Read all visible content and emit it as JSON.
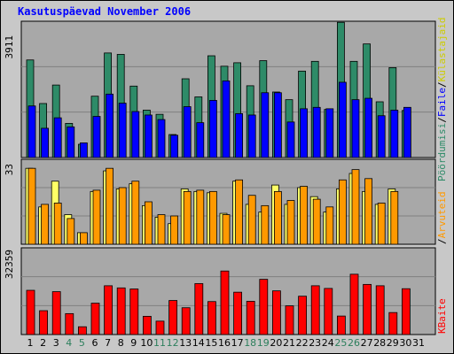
{
  "title": "Kasutuspäevad November 2006",
  "colors": {
    "frame_bg": "#C8C8C8",
    "plot_bg": "#A8A8A8",
    "title": "#0000FF",
    "weekday_day": "#000000",
    "weekend_day": "#2C7F5C",
    "visits_line": "#1E7A5A",
    "visits_fill": "#2E8B68",
    "pages_fill": "#0000FF",
    "hits_fill": "#FF9900",
    "files_fill": "#FFFF66",
    "kbytes_fill": "#FF0000",
    "legend_visits": "#2E8B68",
    "legend_pages": "#0000FF",
    "legend_hits": "#FF9900",
    "legend_files": "#CCCC00",
    "legend_kbytes": "#FF0000",
    "legend_sep": "#000000"
  },
  "chart_data": [
    {
      "type": "bar",
      "panel": "visits_pages",
      "y_label": "3911",
      "ylim": [
        0,
        3911
      ],
      "days": [
        "1",
        "2",
        "3",
        "4",
        "5",
        "6",
        "7",
        "8",
        "9",
        "10",
        "11",
        "12",
        "13",
        "14",
        "15",
        "16",
        "17",
        "18",
        "19",
        "20",
        "21",
        "22",
        "23",
        "24",
        "25",
        "26",
        "27",
        "28",
        "29",
        "30",
        "31"
      ],
      "weekend": [
        4,
        5,
        11,
        12,
        18,
        19,
        25,
        26
      ],
      "series": [
        {
          "name": "Pöördumisi",
          "values": [
            2800,
            1550,
            2080,
            980,
            380,
            1760,
            3000,
            2960,
            2050,
            1360,
            1240,
            660,
            2260,
            1740,
            2920,
            2620,
            2720,
            2060,
            2780,
            1880,
            1660,
            2480,
            2760,
            1380,
            3880,
            2760,
            3260,
            1600,
            2580,
            1350,
            null
          ]
        },
        {
          "name": "Faile",
          "values": [
            1480,
            840,
            1140,
            880,
            420,
            1180,
            1820,
            1560,
            1320,
            1220,
            1090,
            640,
            1460,
            1000,
            1640,
            2200,
            1260,
            1220,
            1860,
            1860,
            1020,
            1400,
            1440,
            1400,
            2160,
            1660,
            1700,
            1200,
            1360,
            1440,
            null
          ]
        }
      ]
    },
    {
      "type": "bar",
      "panel": "hits_files",
      "y_label": "33",
      "ylim": [
        0,
        33
      ],
      "series": [
        {
          "name": "Arvuteid",
          "values": [
            29.5,
            15.5,
            16,
            10,
            4.5,
            21,
            29.5,
            22,
            24.5,
            16.5,
            11.5,
            11,
            20.5,
            21,
            20.5,
            11.5,
            25,
            19,
            15,
            20.5,
            17,
            22.5,
            17.5,
            14.5,
            25,
            29,
            25.5,
            16,
            20.5,
            null
          ]
        },
        {
          "name": "Külastajaid",
          "values": [
            29.5,
            14.5,
            24.5,
            11.5,
            4.5,
            20.5,
            28.5,
            21.5,
            23.5,
            15,
            10.5,
            8,
            21.5,
            20.5,
            20,
            12,
            24.5,
            15.5,
            12.5,
            23,
            15.5,
            22,
            18.5,
            12.5,
            21.5,
            27.5,
            20.5,
            15.5,
            21.5,
            null
          ]
        }
      ]
    },
    {
      "type": "bar",
      "panel": "kbytes",
      "y_label": "32359",
      "ylim": [
        0,
        32359
      ],
      "series": [
        {
          "name": "KBaite",
          "values": [
            16500,
            8900,
            16000,
            7800,
            2900,
            11700,
            18200,
            17400,
            17000,
            6800,
            5000,
            12700,
            10000,
            19000,
            12300,
            23700,
            15800,
            12400,
            20600,
            16300,
            10700,
            14300,
            18200,
            17200,
            6900,
            22500,
            18700,
            18200,
            8200,
            17100,
            null
          ]
        }
      ]
    }
  ],
  "right_legend": [
    {
      "text": "Pöördumisi",
      "color_key": "legend_visits"
    },
    {
      "text": "/",
      "color_key": "legend_sep"
    },
    {
      "text": "Faile",
      "color_key": "legend_pages"
    },
    {
      "text": "/",
      "color_key": "legend_sep"
    },
    {
      "text": "Külastajaid",
      "color_key": "legend_files"
    },
    {
      "text": "/",
      "color_key": "legend_sep"
    },
    {
      "text": "Arvuteid",
      "color_key": "legend_hits"
    },
    {
      "text": "KBaite",
      "color_key": "legend_kbytes"
    }
  ]
}
